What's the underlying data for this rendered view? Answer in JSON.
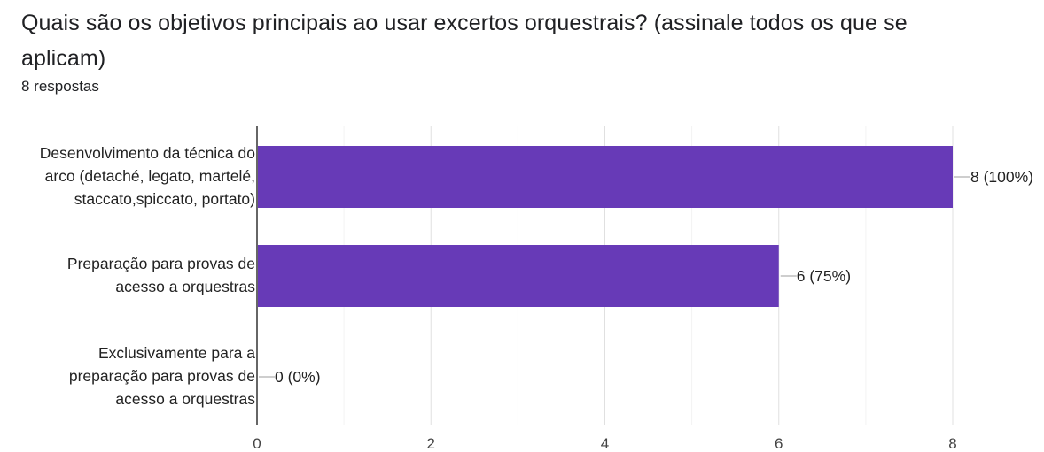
{
  "question": {
    "title": "Quais são os objetivos principais ao usar excertos orquestrais? (assinale todos os que se aplicam)",
    "responses": "8 respostas"
  },
  "chart_data": {
    "type": "bar",
    "orientation": "horizontal",
    "categories": [
      [
        "Desenvolvimento da técnica do",
        "arco (detaché, legato, martelé,",
        "staccato,spiccato, portato)"
      ],
      [
        "Preparação para provas de",
        "acesso a orquestras"
      ],
      [
        "Exclusivamente para a",
        "preparação para provas de",
        "acesso a orquestras"
      ]
    ],
    "values": [
      8,
      6,
      0
    ],
    "data_labels": [
      "8 (100%)",
      "6 (75%)",
      "0 (0%)"
    ],
    "xlim": [
      0,
      8
    ],
    "x_ticks": [
      "0",
      "2",
      "4",
      "6",
      "8"
    ],
    "bar_color": "#673ab7",
    "grid": true,
    "legend": "none",
    "title": "",
    "xlabel": "",
    "ylabel": ""
  }
}
